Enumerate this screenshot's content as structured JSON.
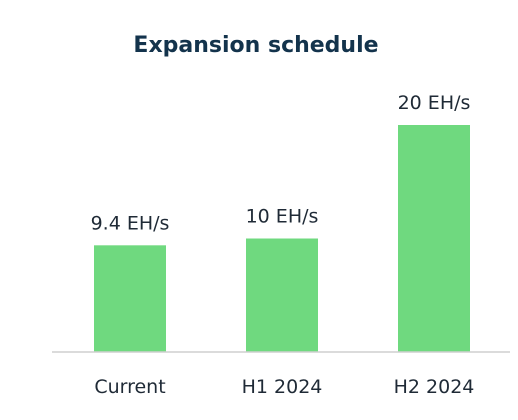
{
  "chart_data": {
    "type": "bar",
    "title": "Expansion schedule",
    "categories": [
      "Current",
      "H1 2024",
      "H2 2024"
    ],
    "values": [
      9.4,
      10,
      20
    ],
    "data_labels": [
      "9.4 EH/s",
      "10 EH/s",
      "20 EH/s"
    ],
    "unit": "EH/s",
    "ylim": [
      0,
      20
    ],
    "grid": false,
    "legend": "none",
    "colors": {
      "bar": "#6fd97f",
      "title": "#13334c",
      "text": "#1f2a36",
      "axis": "#cfcfcf"
    }
  }
}
